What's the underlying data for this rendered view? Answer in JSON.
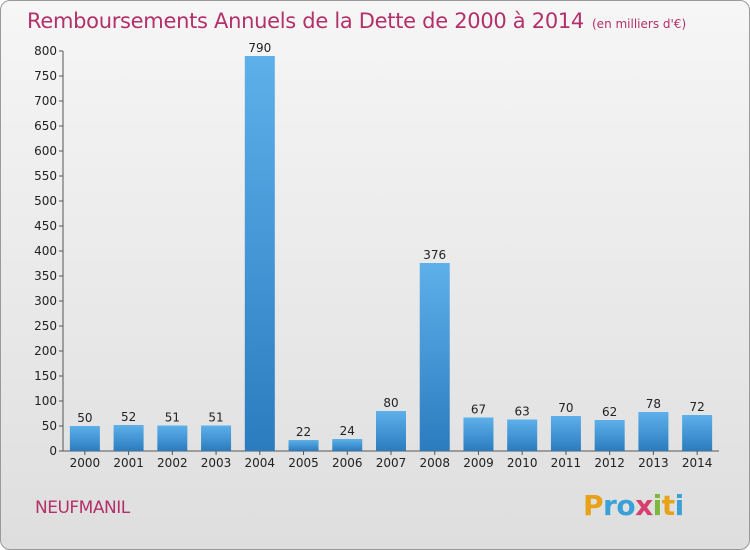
{
  "title": "Remboursements Annuels de la Dette de 2000 à 2014",
  "subtitle": "(en milliers d'€)",
  "city": "NEUFMANIL",
  "logo": {
    "letters": [
      "P",
      "r",
      "o",
      "x",
      "i",
      "t",
      "i"
    ],
    "colors": [
      "#e8a21a",
      "#3aa0d8",
      "#3aa0d8",
      "#d6406e",
      "#7cb83a",
      "#e8a21a",
      "#3aa0d8"
    ]
  },
  "colors": {
    "bar_light": "#5eb0ea",
    "bar_dark": "#2a7cbf",
    "title": "#b3306b"
  },
  "chart_data": {
    "type": "bar",
    "title": "Remboursements Annuels de la Dette de 2000 à 2014",
    "subtitle": "(en milliers d'€)",
    "categories": [
      "2000",
      "2001",
      "2002",
      "2003",
      "2004",
      "2005",
      "2006",
      "2007",
      "2008",
      "2009",
      "2010",
      "2011",
      "2012",
      "2013",
      "2014"
    ],
    "values": [
      50,
      52,
      51,
      51,
      790,
      22,
      24,
      80,
      376,
      67,
      63,
      70,
      62,
      78,
      72
    ],
    "ylim": [
      0,
      800
    ],
    "yticks": [
      0,
      50,
      100,
      150,
      200,
      250,
      300,
      350,
      400,
      450,
      500,
      550,
      600,
      650,
      700,
      750,
      800
    ],
    "grid": false,
    "legend": "none"
  }
}
